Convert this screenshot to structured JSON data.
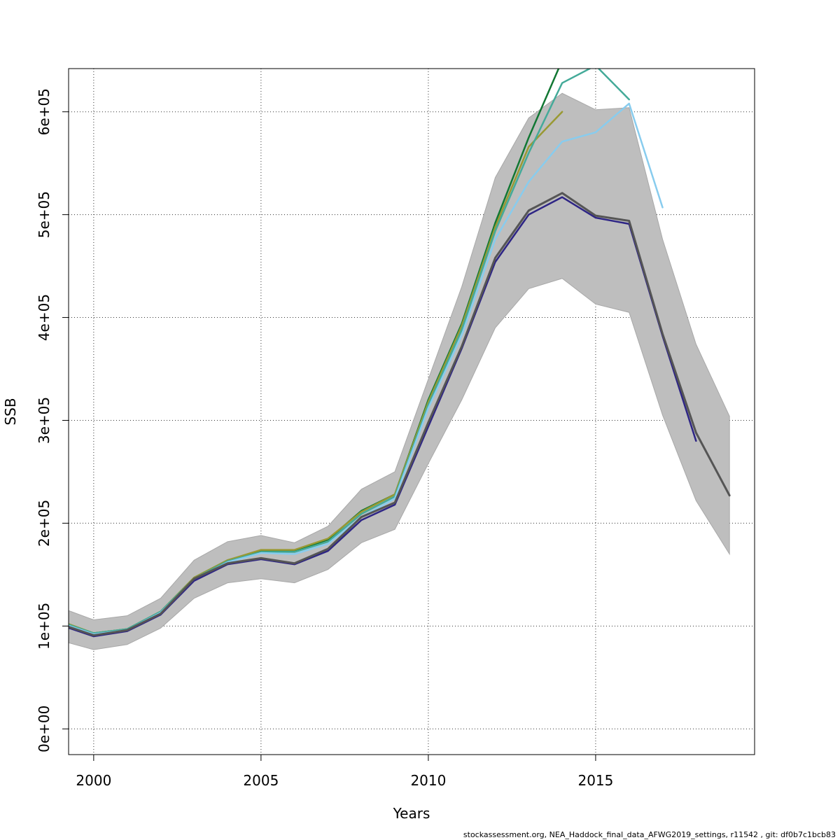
{
  "chart_data": {
    "type": "line",
    "xlabel": "Years",
    "ylabel": "SSB",
    "xlim": [
      1999.25,
      2019.75
    ],
    "ylim": [
      -25000,
      642000
    ],
    "x_ticks": [
      2000,
      2005,
      2010,
      2015
    ],
    "x_tick_labels": [
      "2000",
      "2005",
      "2010",
      "2015"
    ],
    "y_ticks": [
      0,
      100000,
      200000,
      300000,
      400000,
      500000,
      600000
    ],
    "y_tick_labels": [
      "0e+00",
      "1e+05",
      "2e+05",
      "3e+05",
      "4e+05",
      "5e+05",
      "6e+05"
    ],
    "grid": true,
    "confidence_band": {
      "fill": "#bebebe",
      "x": [
        1999,
        2000,
        2001,
        2002,
        2003,
        2004,
        2005,
        2006,
        2007,
        2008,
        2009,
        2010,
        2011,
        2012,
        2013,
        2014,
        2015,
        2016,
        2017,
        2018,
        2019
      ],
      "lower": [
        86000,
        77000,
        82000,
        98000,
        127000,
        142000,
        146000,
        142000,
        155000,
        181000,
        194000,
        258000,
        320000,
        390000,
        428000,
        438000,
        413000,
        405000,
        305000,
        222000,
        170000
      ],
      "upper": [
        118000,
        106000,
        110000,
        127000,
        164000,
        182000,
        188000,
        181000,
        197000,
        233000,
        250000,
        340000,
        430000,
        536000,
        594000,
        618000,
        602000,
        604000,
        476000,
        374000,
        304000
      ]
    },
    "series": [
      {
        "color": "#555555",
        "style": "solid",
        "width": 3,
        "x": [
          1999,
          2000,
          2001,
          2002,
          2003,
          2004,
          2005,
          2006,
          2007,
          2008,
          2009,
          2010,
          2011,
          2012,
          2013,
          2014,
          2015,
          2016,
          2017,
          2018,
          2019
        ],
        "y": [
          102000,
          91000,
          96000,
          112000,
          146000,
          161000,
          166000,
          161000,
          175000,
          206000,
          220000,
          298000,
          372000,
          458000,
          504000,
          521000,
          499000,
          494000,
          384000,
          288000,
          227000
        ]
      },
      {
        "color": "#000000",
        "style": "dashed",
        "width": 2,
        "x": [
          1999,
          2000,
          2001,
          2002,
          2003,
          2004,
          2005,
          2006,
          2007,
          2008,
          2009,
          2010,
          2011,
          2012,
          2013,
          2014,
          2015,
          2016,
          2017,
          2018,
          2019
        ],
        "y": [
          102000,
          91000,
          96000,
          112000,
          146000,
          161000,
          166000,
          161000,
          175000,
          206000,
          220000,
          298000,
          372000,
          458000,
          504000,
          521000,
          499000,
          494000,
          384000,
          288000,
          227000
        ]
      },
      {
        "color": "#2e2585",
        "style": "solid",
        "width": 2.5,
        "x": [
          1999,
          2000,
          2001,
          2002,
          2003,
          2004,
          2005,
          2006,
          2007,
          2008,
          2009,
          2010,
          2011,
          2012,
          2013,
          2014,
          2015,
          2016,
          2017,
          2018
        ],
        "y": [
          101000,
          90000,
          95000,
          111000,
          144000,
          160000,
          165000,
          160000,
          173000,
          203000,
          218000,
          294000,
          370000,
          454000,
          500000,
          517000,
          497000,
          491000,
          382000,
          280000
        ]
      },
      {
        "color": "#88ccee",
        "style": "solid",
        "width": 2.5,
        "x": [
          1999,
          2000,
          2001,
          2002,
          2003,
          2004,
          2005,
          2006,
          2007,
          2008,
          2009,
          2010,
          2011,
          2012,
          2013,
          2014,
          2015,
          2016,
          2017
        ],
        "y": [
          103000,
          92000,
          96000,
          113000,
          145000,
          162000,
          171000,
          170000,
          180000,
          206000,
          224000,
          312000,
          383000,
          476000,
          532000,
          571000,
          580000,
          608000,
          507000
        ]
      },
      {
        "color": "#44aa99",
        "style": "solid",
        "width": 2.5,
        "x": [
          1999,
          2000,
          2001,
          2002,
          2003,
          2004,
          2005,
          2006,
          2007,
          2008,
          2009,
          2010,
          2011,
          2012,
          2013,
          2014,
          2015,
          2016
        ],
        "y": [
          104000,
          93000,
          97000,
          114000,
          146000,
          163000,
          172000,
          172000,
          182000,
          209000,
          226000,
          315000,
          388000,
          484000,
          560000,
          628000,
          645000,
          612000
        ]
      },
      {
        "color": "#999933",
        "style": "solid",
        "width": 2.5,
        "x": [
          1999,
          2000,
          2001,
          2002,
          2003,
          2004,
          2005,
          2006,
          2007,
          2008,
          2009,
          2010,
          2011,
          2012,
          2013,
          2014
        ],
        "y": [
          105000,
          93000,
          97000,
          114000,
          147000,
          164000,
          174000,
          174000,
          185000,
          211000,
          228000,
          318000,
          392000,
          488000,
          566000,
          600000
        ]
      },
      {
        "color": "#117733",
        "style": "solid",
        "width": 2.5,
        "x": [
          1999,
          2000,
          2001,
          2002,
          2003,
          2004,
          2005,
          2006,
          2007,
          2008,
          2009,
          2010,
          2011,
          2012,
          2013,
          2014
        ],
        "y": [
          104000,
          93000,
          97000,
          114000,
          147000,
          164000,
          173000,
          173000,
          184000,
          212000,
          228000,
          320000,
          394000,
          492000,
          575000,
          650000
        ]
      }
    ],
    "caption": "stockassessment.org, NEA_Haddock_final_data_AFWG2019_settings, r11542 , git: df0b7c1bcb83"
  }
}
